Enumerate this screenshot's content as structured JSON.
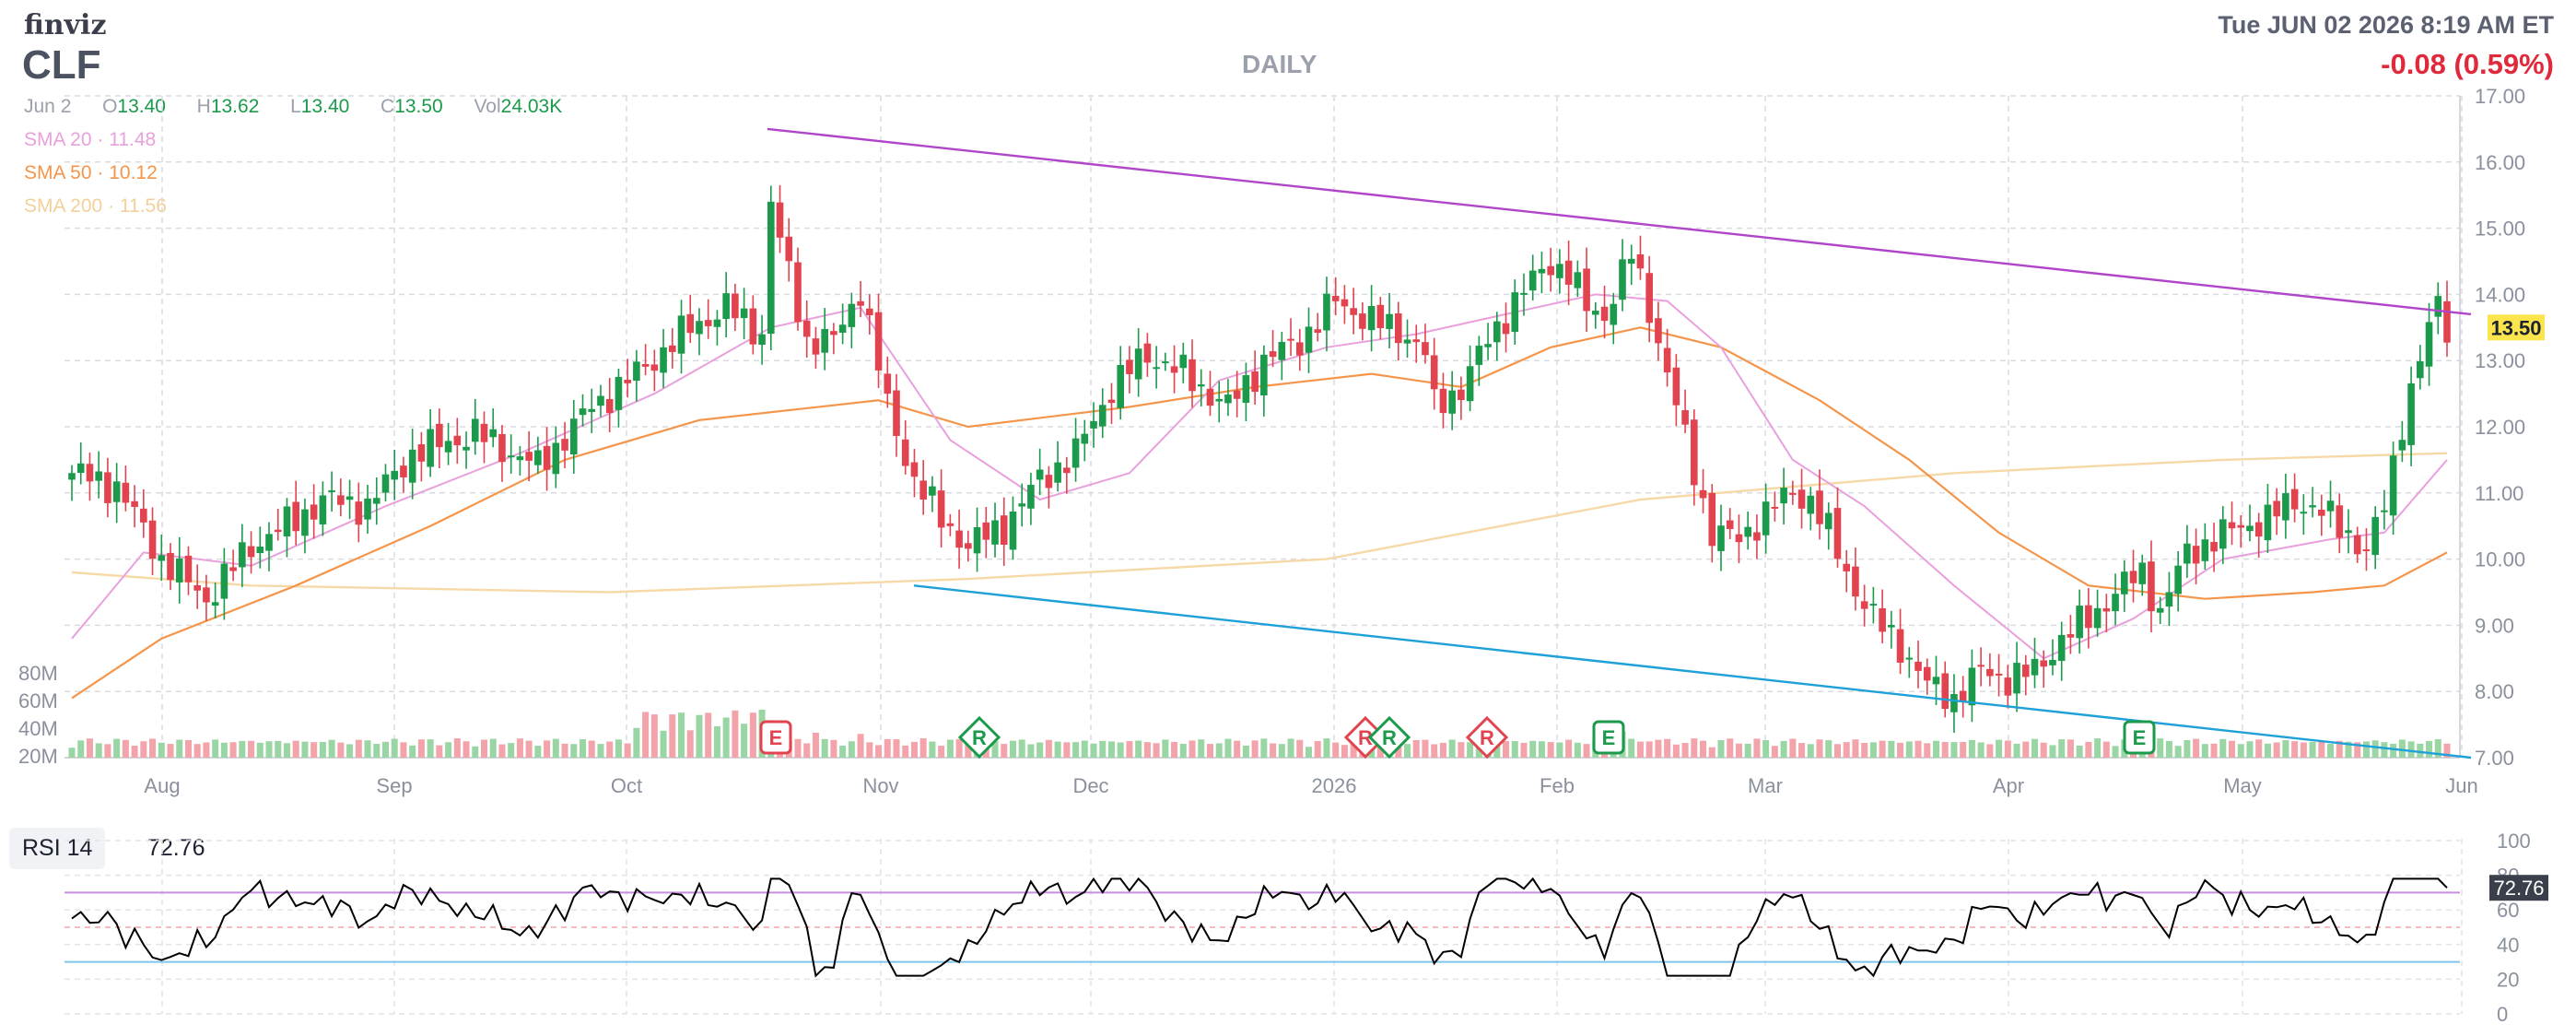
{
  "brand": "finviz",
  "ticker": "CLF",
  "timeframe": "DAILY",
  "datetime": "Tue JUN 02 2026 8:19 AM ET",
  "change": "-0.08 (0.59%)",
  "ohlc": {
    "date": "Jun 2",
    "o_label": "O",
    "o": "13.40",
    "h_label": "H",
    "h": "13.62",
    "l_label": "L",
    "l": "13.40",
    "c_label": "C",
    "c": "13.50",
    "vol_label": "Vol",
    "vol": "24.03K"
  },
  "sma_legend": [
    {
      "label": "SMA 20",
      "value": "11.48",
      "color": "#e9a0dc"
    },
    {
      "label": "SMA 50",
      "value": "10.12",
      "color": "#f5954a"
    },
    {
      "label": "SMA 200",
      "value": "11.56",
      "color": "#f7d9a8"
    }
  ],
  "last_price_label": "13.50",
  "rsi": {
    "label": "RSI 14",
    "value": "72.76",
    "badge": "72.76",
    "overbought": 70,
    "oversold": 30,
    "ylim": [
      0,
      100
    ],
    "yticks": [
      "100",
      "80",
      "60",
      "40",
      "20",
      "0"
    ]
  },
  "colors": {
    "up": "#1a9a4a",
    "down": "#e1434f",
    "vol_up": "#9ad6a4",
    "vol_down": "#f3a3aa",
    "trend_upper": "#b145c9",
    "trend_lower": "#1ea0d8",
    "last_price": "#fbe44c",
    "negative": "#e0293b",
    "rsi_line": "#000000",
    "rsi_ob": "#c98ee0",
    "rsi_os": "#7dc6ea"
  },
  "chart_data": {
    "type": "candlestick",
    "title": "DAILY",
    "ylim": [
      7.0,
      17.0
    ],
    "yticks": [
      "17.00",
      "16.00",
      "15.00",
      "14.00",
      "13.00",
      "12.00",
      "11.00",
      "10.00",
      "9.00",
      "8.00",
      "7.00"
    ],
    "volume_ticks": [
      "80M",
      "60M",
      "40M",
      "20M"
    ],
    "x_labels": [
      "Aug",
      "Sep",
      "Oct",
      "Nov",
      "Dec",
      "2026",
      "Feb",
      "Mar",
      "Apr",
      "May",
      "Jun"
    ],
    "events": [
      {
        "label": "E",
        "month": "Oct",
        "color": "#e1434f"
      },
      {
        "label": "R",
        "month": "Oct",
        "color": "#1a9a4a"
      },
      {
        "label": "R",
        "month": "2026",
        "color": "#e1434f"
      },
      {
        "label": "R",
        "month": "2026",
        "color": "#1a9a4a"
      },
      {
        "label": "R",
        "month": "2026",
        "color": "#e1434f"
      },
      {
        "label": "E",
        "month": "Feb",
        "color": "#1a9a4a"
      },
      {
        "label": "E",
        "month": "Apr",
        "color": "#1a9a4a"
      }
    ],
    "trendlines": [
      {
        "name": "upper",
        "from": [
          16.5
        ],
        "to": [
          13.7
        ]
      },
      {
        "name": "lower",
        "from": [
          9.6
        ],
        "to": [
          7.0
        ]
      }
    ],
    "anchors": [
      [
        0,
        11.3
      ],
      [
        5,
        11.1
      ],
      [
        10,
        10.0
      ],
      [
        15,
        9.4
      ],
      [
        20,
        10.2
      ],
      [
        25,
        10.6
      ],
      [
        28,
        10.9
      ],
      [
        33,
        10.8
      ],
      [
        38,
        11.6
      ],
      [
        45,
        11.9
      ],
      [
        52,
        11.4
      ],
      [
        58,
        12.3
      ],
      [
        63,
        12.8
      ],
      [
        69,
        13.5
      ],
      [
        73,
        13.8
      ],
      [
        77,
        13.4
      ],
      [
        78,
        15.4
      ],
      [
        79,
        14.8
      ],
      [
        82,
        13.3
      ],
      [
        85,
        13.3
      ],
      [
        88,
        14.1
      ],
      [
        91,
        12.3
      ],
      [
        94,
        11.2
      ],
      [
        97,
        10.6
      ],
      [
        100,
        10.2
      ],
      [
        104,
        10.5
      ],
      [
        108,
        11.2
      ],
      [
        112,
        11.6
      ],
      [
        116,
        12.6
      ],
      [
        120,
        13.1
      ],
      [
        124,
        12.8
      ],
      [
        129,
        12.3
      ],
      [
        133,
        13.0
      ],
      [
        137,
        13.3
      ],
      [
        141,
        13.9
      ],
      [
        145,
        13.6
      ],
      [
        149,
        13.4
      ],
      [
        151,
        13.1
      ],
      [
        152,
        12.3
      ],
      [
        155,
        12.6
      ],
      [
        158,
        13.3
      ],
      [
        161,
        13.9
      ],
      [
        163,
        14.2
      ],
      [
        165,
        14.5
      ],
      [
        167,
        14.3
      ],
      [
        169,
        13.8
      ],
      [
        171,
        13.7
      ],
      [
        174,
        14.6
      ],
      [
        176,
        13.8
      ],
      [
        178,
        12.8
      ],
      [
        180,
        11.8
      ],
      [
        183,
        10.4
      ],
      [
        186,
        10.3
      ],
      [
        189,
        10.7
      ],
      [
        192,
        11.0
      ],
      [
        194,
        10.9
      ],
      [
        196,
        10.4
      ],
      [
        198,
        9.8
      ],
      [
        201,
        9.1
      ],
      [
        204,
        8.7
      ],
      [
        207,
        8.1
      ],
      [
        210,
        7.9
      ],
      [
        213,
        8.3
      ],
      [
        216,
        8.2
      ],
      [
        219,
        8.3
      ],
      [
        222,
        8.8
      ],
      [
        225,
        9.1
      ],
      [
        228,
        9.5
      ],
      [
        231,
        9.8
      ],
      [
        233,
        9.2
      ],
      [
        236,
        10.1
      ],
      [
        239,
        10.3
      ],
      [
        242,
        10.5
      ],
      [
        245,
        10.6
      ],
      [
        248,
        10.9
      ],
      [
        251,
        10.7
      ],
      [
        254,
        10.4
      ],
      [
        256,
        10.1
      ],
      [
        258,
        10.8
      ],
      [
        260,
        12.1
      ],
      [
        262,
        13.0
      ],
      [
        264,
        13.9
      ],
      [
        265,
        13.5
      ]
    ],
    "sma20": [
      [
        0,
        8.8
      ],
      [
        8,
        10.1
      ],
      [
        20,
        9.9
      ],
      [
        35,
        10.8
      ],
      [
        50,
        11.6
      ],
      [
        65,
        12.5
      ],
      [
        78,
        13.5
      ],
      [
        88,
        13.8
      ],
      [
        98,
        11.8
      ],
      [
        108,
        10.9
      ],
      [
        118,
        11.3
      ],
      [
        128,
        12.7
      ],
      [
        140,
        13.2
      ],
      [
        150,
        13.4
      ],
      [
        160,
        13.7
      ],
      [
        170,
        14.0
      ],
      [
        178,
        13.9
      ],
      [
        184,
        13.2
      ],
      [
        192,
        11.5
      ],
      [
        200,
        10.8
      ],
      [
        210,
        9.6
      ],
      [
        220,
        8.5
      ],
      [
        230,
        9.1
      ],
      [
        240,
        10.0
      ],
      [
        252,
        10.3
      ],
      [
        258,
        10.4
      ],
      [
        265,
        11.5
      ]
    ],
    "sma50": [
      [
        0,
        7.9
      ],
      [
        10,
        8.8
      ],
      [
        25,
        9.6
      ],
      [
        40,
        10.5
      ],
      [
        55,
        11.5
      ],
      [
        70,
        12.1
      ],
      [
        90,
        12.4
      ],
      [
        100,
        12.0
      ],
      [
        118,
        12.3
      ],
      [
        132,
        12.6
      ],
      [
        145,
        12.8
      ],
      [
        155,
        12.6
      ],
      [
        165,
        13.2
      ],
      [
        175,
        13.5
      ],
      [
        184,
        13.2
      ],
      [
        195,
        12.4
      ],
      [
        205,
        11.5
      ],
      [
        215,
        10.4
      ],
      [
        225,
        9.6
      ],
      [
        238,
        9.4
      ],
      [
        250,
        9.5
      ],
      [
        258,
        9.6
      ],
      [
        265,
        10.1
      ]
    ],
    "sma200": [
      [
        0,
        9.8
      ],
      [
        20,
        9.6
      ],
      [
        60,
        9.5
      ],
      [
        100,
        9.7
      ],
      [
        140,
        10.0
      ],
      [
        175,
        10.9
      ],
      [
        210,
        11.3
      ],
      [
        240,
        11.5
      ],
      [
        265,
        11.6
      ]
    ]
  }
}
